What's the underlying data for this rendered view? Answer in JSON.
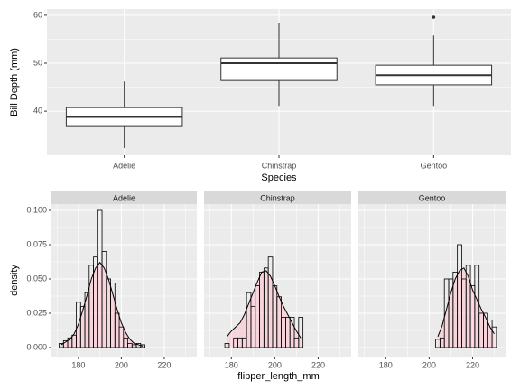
{
  "chart_data": [
    {
      "type": "box",
      "y_label": "Bill Depth (mm)",
      "x_label": "Species",
      "categories": [
        "Adelie",
        "Chinstrap",
        "Gentoo"
      ],
      "boxes": [
        {
          "min": 32.3,
          "q1": 36.8,
          "median": 38.8,
          "q3": 40.75,
          "max": 46.2,
          "outliers": []
        },
        {
          "min": 41.1,
          "q1": 46.4,
          "median": 50.0,
          "q3": 51.1,
          "max": 58.3,
          "outliers": []
        },
        {
          "min": 41.1,
          "q1": 45.5,
          "median": 47.5,
          "q3": 49.6,
          "max": 55.8,
          "outliers": [
            59.6
          ]
        }
      ],
      "ylim": [
        30.8,
        61.3
      ],
      "yticks": [
        40,
        50,
        60
      ],
      "fill": "#ffffff",
      "grid": true
    },
    {
      "type": "histogram",
      "x_label": "flipper_length_mm",
      "y_label": "density",
      "bins": [
        171,
        173,
        175,
        177,
        179,
        181,
        183,
        185,
        187,
        189,
        191,
        193,
        195,
        197,
        199,
        201,
        203,
        205,
        207,
        209,
        211,
        213,
        215,
        217,
        219,
        221,
        223,
        225,
        227,
        229,
        231
      ],
      "xlim": [
        167.4,
        235.2
      ],
      "xticks": [
        180,
        200,
        220
      ],
      "ylim": [
        -0.0066,
        0.1046
      ],
      "yticks": [
        {
          "value": 0,
          "label": "0.000"
        },
        {
          "value": 0.025,
          "label": "0.025"
        },
        {
          "value": 0.05,
          "label": "0.050"
        },
        {
          "value": 0.075,
          "label": "0.075"
        },
        {
          "value": 0.1,
          "label": "0.100"
        }
      ],
      "bar_color": "#000000",
      "density_fill": "#ffc0cb",
      "grid": true,
      "facets": [
        {
          "title": "Adelie",
          "values": [
            0.003,
            0.005,
            0.007,
            0.009,
            0.033,
            0.03,
            0.04,
            0.06,
            0.066,
            0.1,
            0.07,
            0.05,
            0.047,
            0.025,
            0.015,
            0.007,
            0.003,
            0.002,
            0.003,
            0.002,
            0,
            0,
            0,
            0,
            0,
            0,
            0,
            0,
            0,
            0
          ],
          "density": {
            "x": [
              172,
              174,
              176,
              178,
              180,
              182,
              184,
              186,
              188,
              190,
              192,
              194,
              196,
              198,
              200,
              202,
              204,
              206,
              208,
              210
            ],
            "values": [
              0.002,
              0.004,
              0.006,
              0.01,
              0.017,
              0.027,
              0.038,
              0.05,
              0.058,
              0.062,
              0.058,
              0.05,
              0.039,
              0.028,
              0.018,
              0.011,
              0.006,
              0.003,
              0.002,
              0.001
            ]
          }
        },
        {
          "title": "Chinstrap",
          "values": [
            0,
            0,
            0,
            0.003,
            0,
            0.007,
            0.007,
            0.007,
            0.04,
            0.03,
            0.045,
            0.055,
            0.058,
            0.066,
            0.045,
            0.037,
            0.022,
            0.022,
            0.022,
            0.007,
            0.022,
            0,
            0,
            0,
            0,
            0,
            0,
            0,
            0,
            0
          ],
          "density": {
            "x": [
              178,
              180,
              182,
              184,
              186,
              188,
              190,
              192,
              194,
              196,
              198,
              200,
              202,
              204,
              206,
              208,
              210,
              212
            ],
            "values": [
              0.008,
              0.012,
              0.015,
              0.018,
              0.024,
              0.032,
              0.04,
              0.048,
              0.055,
              0.056,
              0.052,
              0.045,
              0.037,
              0.03,
              0.024,
              0.018,
              0.012,
              0.007
            ]
          }
        },
        {
          "title": "Gentoo",
          "values": [
            0,
            0,
            0,
            0,
            0,
            0,
            0,
            0,
            0,
            0,
            0,
            0,
            0,
            0,
            0,
            0,
            0.006,
            0.007,
            0.05,
            0.05,
            0.055,
            0.075,
            0.05,
            0.06,
            0.045,
            0.06,
            0.025,
            0.025,
            0.02,
            0.015
          ],
          "density": {
            "x": [
              204,
              206,
              208,
              210,
              212,
              214,
              216,
              218,
              220,
              222,
              224,
              226,
              228,
              230
            ],
            "values": [
              0.008,
              0.016,
              0.028,
              0.04,
              0.05,
              0.056,
              0.058,
              0.052,
              0.042,
              0.035,
              0.028,
              0.022,
              0.015,
              0.01
            ]
          }
        }
      ]
    }
  ]
}
